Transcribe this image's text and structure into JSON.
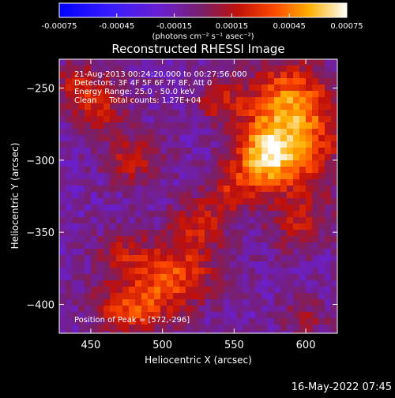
{
  "chart_data": {
    "type": "heatmap",
    "title": "Reconstructed RHESSI Image",
    "xlabel": "Heliocentric X (arcsec)",
    "ylabel": "Heliocentric Y (arcsec)",
    "xlim": [
      428,
      622
    ],
    "ylim": [
      -420,
      -230
    ],
    "xticks": [
      450,
      500,
      550,
      600
    ],
    "yticks": [
      -250,
      -300,
      -350,
      -400
    ],
    "colorbar": {
      "range": [
        -0.00075,
        0.00075
      ],
      "ticks": [
        "-0.00075",
        "-0.00045",
        "-0.00015",
        "0.00015",
        "0.00045",
        "0.00075"
      ],
      "unit_label": "(photons cm⁻² s⁻¹ asec⁻²)"
    },
    "info_lines": [
      "21-Aug-2013 00:24:20.000 to 00:27:56.000",
      "Detectors: 3F 4F 5F 6F 7F 8F, Att 0",
      "Energy Range: 25.0 - 50.0 keV",
      "Clean     Total counts: 1.27E+04"
    ],
    "peak_label": "Position of Peak = [572,-296]",
    "peak": [
      572,
      -296
    ],
    "sources": [
      {
        "x": 572,
        "y": -296,
        "amp": 0.00072,
        "sx": 14,
        "sy": 16
      },
      {
        "x": 585,
        "y": -258,
        "amp": 0.00045,
        "sx": 20,
        "sy": 18
      },
      {
        "x": 600,
        "y": -290,
        "amp": 0.0004,
        "sx": 18,
        "sy": 28
      },
      {
        "x": 548,
        "y": -320,
        "amp": 0.0003,
        "sx": 14,
        "sy": 12
      },
      {
        "x": 540,
        "y": -260,
        "amp": 0.00028,
        "sx": 12,
        "sy": 10
      },
      {
        "x": 455,
        "y": -262,
        "amp": 0.00032,
        "sx": 14,
        "sy": 14
      },
      {
        "x": 440,
        "y": -245,
        "amp": 0.00025,
        "sx": 10,
        "sy": 10
      },
      {
        "x": 480,
        "y": -300,
        "amp": 0.0003,
        "sx": 14,
        "sy": 12
      },
      {
        "x": 505,
        "y": -380,
        "amp": 0.00048,
        "sx": 22,
        "sy": 16
      },
      {
        "x": 478,
        "y": -405,
        "amp": 0.0004,
        "sx": 18,
        "sy": 12
      },
      {
        "x": 525,
        "y": -345,
        "amp": 0.0003,
        "sx": 14,
        "sy": 12
      },
      {
        "x": 470,
        "y": -365,
        "amp": 0.00022,
        "sx": 12,
        "sy": 10
      },
      {
        "x": 595,
        "y": -345,
        "amp": 0.00024,
        "sx": 14,
        "sy": 12
      },
      {
        "x": 600,
        "y": -410,
        "amp": 0.00018,
        "sx": 12,
        "sy": 10
      }
    ],
    "grid": false
  },
  "footer": {
    "timestamp": "16-May-2022 07:45"
  }
}
